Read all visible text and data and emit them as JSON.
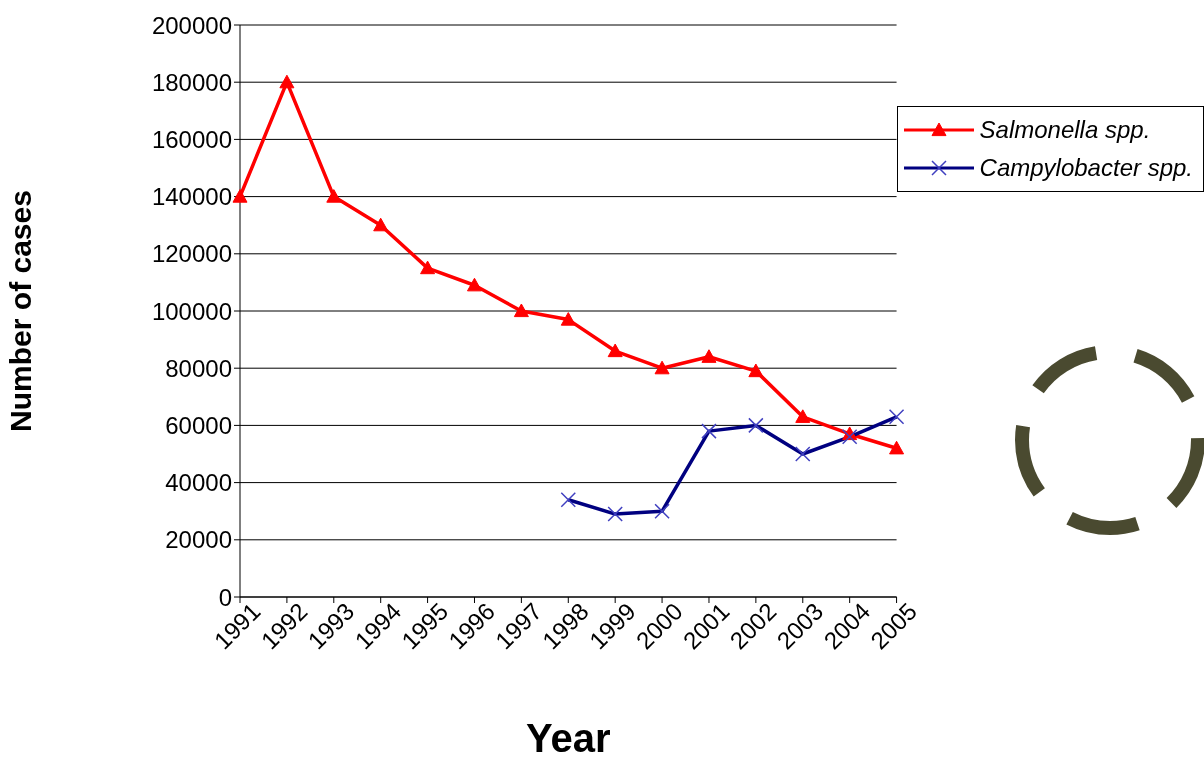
{
  "chart_data": {
    "type": "line",
    "xlabel": "Year",
    "ylabel": "Number of  cases",
    "categories": [
      "1991",
      "1992",
      "1993",
      "1994",
      "1995",
      "1996",
      "1997",
      "1998",
      "1999",
      "2000",
      "2001",
      "2002",
      "2003",
      "2004",
      "2005"
    ],
    "series": [
      {
        "name": "Salmonella spp.",
        "color": "#ff0000",
        "marker": "triangle",
        "values": [
          140000,
          180000,
          140000,
          130000,
          115000,
          109000,
          100000,
          97000,
          86000,
          80000,
          84000,
          79000,
          63000,
          57000,
          52000
        ]
      },
      {
        "name": "Campylobacter spp.",
        "color": "#000080",
        "marker": "cross",
        "values": [
          null,
          null,
          null,
          null,
          null,
          null,
          null,
          34000,
          29000,
          30000,
          58000,
          60000,
          50000,
          56000,
          63000
        ]
      }
    ],
    "ylim": [
      0,
      200000
    ],
    "yticks": [
      0,
      20000,
      40000,
      60000,
      80000,
      100000,
      120000,
      140000,
      160000,
      180000,
      200000
    ],
    "grid": "y",
    "legend": "top right",
    "line_style": "solid"
  }
}
